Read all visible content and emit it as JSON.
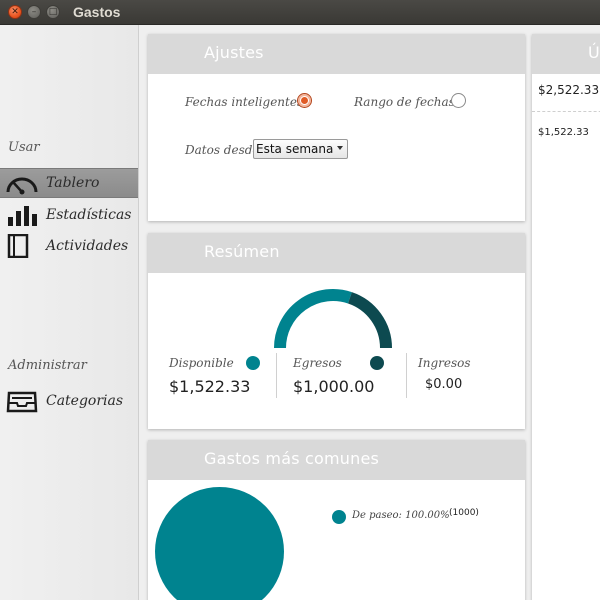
{
  "window": {
    "title": "Gastos"
  },
  "sidebar": {
    "section_use": "Usar",
    "section_admin": "Administrar",
    "items": [
      {
        "label": "Tablero",
        "icon": "gauge-icon",
        "active": true
      },
      {
        "label": "Estadísticas",
        "icon": "bar-chart-icon",
        "active": false
      },
      {
        "label": "Actividades",
        "icon": "notebook-icon",
        "active": false
      },
      {
        "label": "Categorias",
        "icon": "inbox-tray-icon",
        "active": false
      }
    ]
  },
  "settings": {
    "title": "Ajustes",
    "smart_dates_label": "Fechas inteligentes",
    "date_range_label": "Rango de fechas",
    "data_since_label": "Datos desde",
    "data_since_value": "Esta semana",
    "selected_mode": "Fechas inteligentes"
  },
  "summary": {
    "title": "Resúmen",
    "available_label": "Disponible",
    "available_value": "$1,522.33",
    "expenses_label": "Egresos",
    "expenses_value": "$1,000.00",
    "income_label": "Ingresos",
    "income_value": "$0.00",
    "gauge_fraction_expenses": 0.3965,
    "colors": {
      "available": "#00838f",
      "expenses": "#0d4a50"
    }
  },
  "common_expenses": {
    "title": "Gastos más comunes",
    "legend": [
      {
        "label": "De paseo: 100.00%",
        "count": "(1000)",
        "color": "#00838f"
      }
    ]
  },
  "right_panel": {
    "title_fragment": "Ú",
    "top_value": "$2,522.33",
    "second_value": "$1,522.33"
  }
}
